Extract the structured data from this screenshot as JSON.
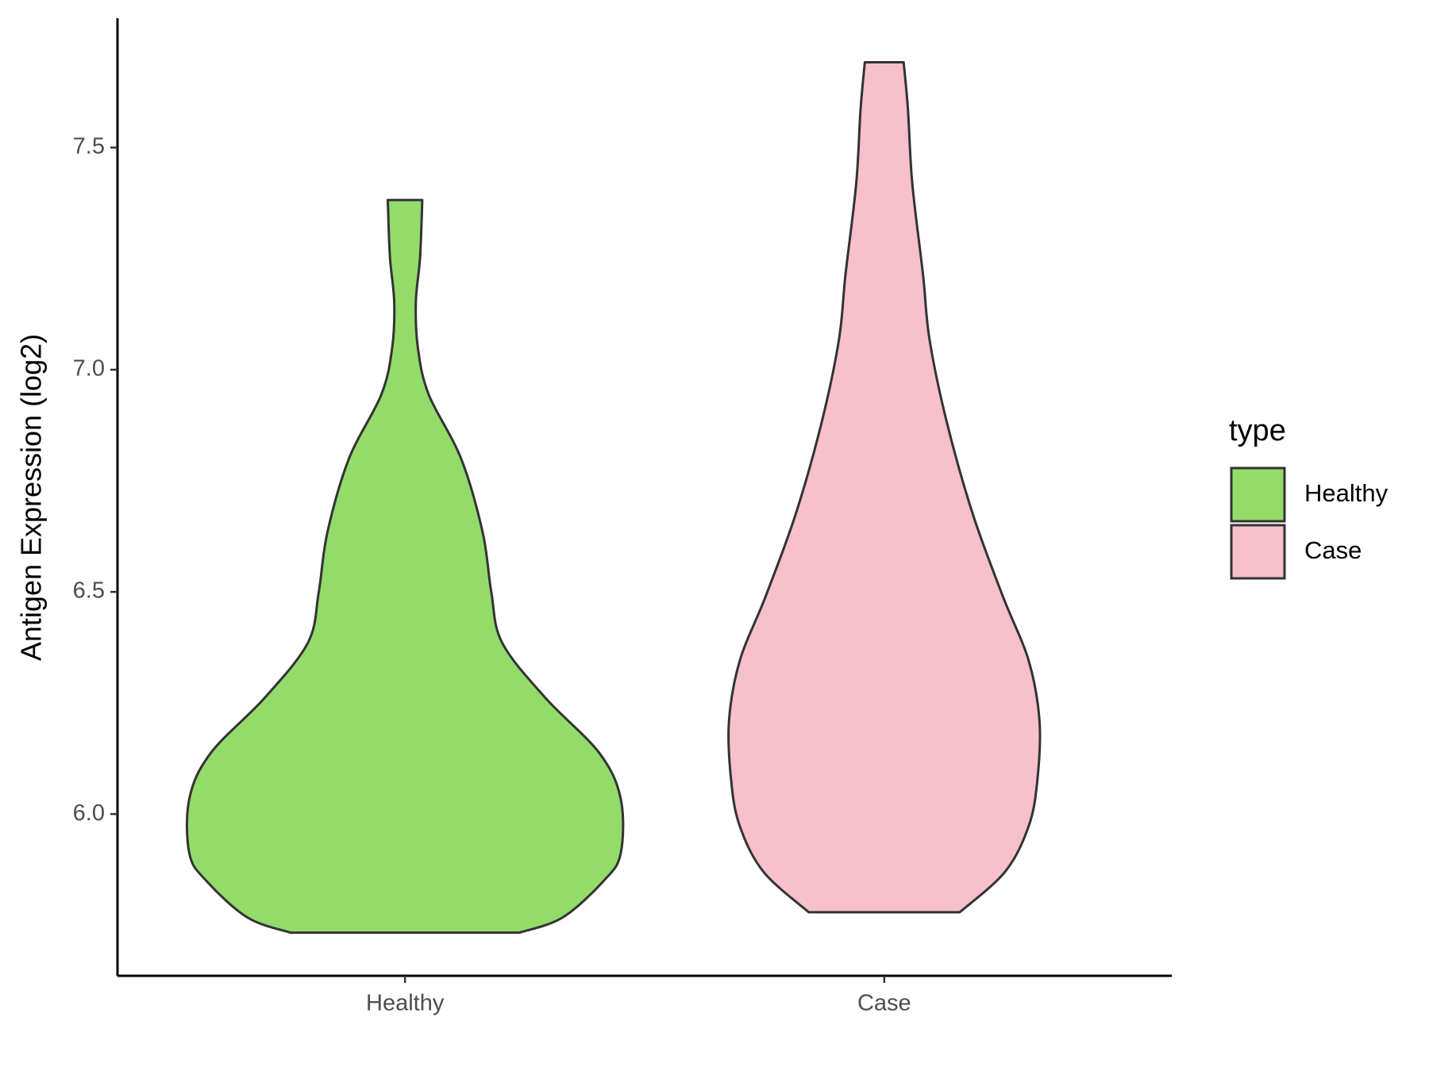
{
  "chart_data": {
    "type": "violin",
    "y_label": "Antigen Expression (log2)",
    "categories": [
      "Healthy",
      "Case"
    ],
    "legend_title": "type",
    "legend_position": "right",
    "ylim": [
      5.636,
      7.791
    ],
    "yticks": [
      {
        "value": 6,
        "label": "6.0"
      },
      6.5,
      {
        "value": 7,
        "label": "7.0"
      },
      7.5
    ],
    "grid": false,
    "series": [
      {
        "name": "Healthy",
        "color": "#93dc6a",
        "y": [
          5.733,
          5.767,
          5.849,
          5.911,
          6.035,
          6.138,
          6.262,
          6.386,
          6.5,
          6.634,
          6.8,
          6.944,
          7.048,
          7.151,
          7.254,
          7.382
        ],
        "density": [
          0.53,
          0.73,
          0.92,
          1.0,
          1.0,
          0.9,
          0.65,
          0.45,
          0.4,
          0.36,
          0.26,
          0.11,
          0.06,
          0.05,
          0.07,
          0.08
        ]
      },
      {
        "name": "Case",
        "color": "#f7c0cb",
        "y": [
          5.779,
          5.87,
          5.973,
          6.076,
          6.209,
          6.345,
          6.49,
          6.676,
          6.882,
          7.068,
          7.213,
          7.419,
          7.585,
          7.692
        ],
        "density": [
          0.35,
          0.56,
          0.67,
          0.71,
          0.72,
          0.67,
          0.55,
          0.41,
          0.29,
          0.21,
          0.18,
          0.13,
          0.11,
          0.09
        ]
      }
    ]
  }
}
